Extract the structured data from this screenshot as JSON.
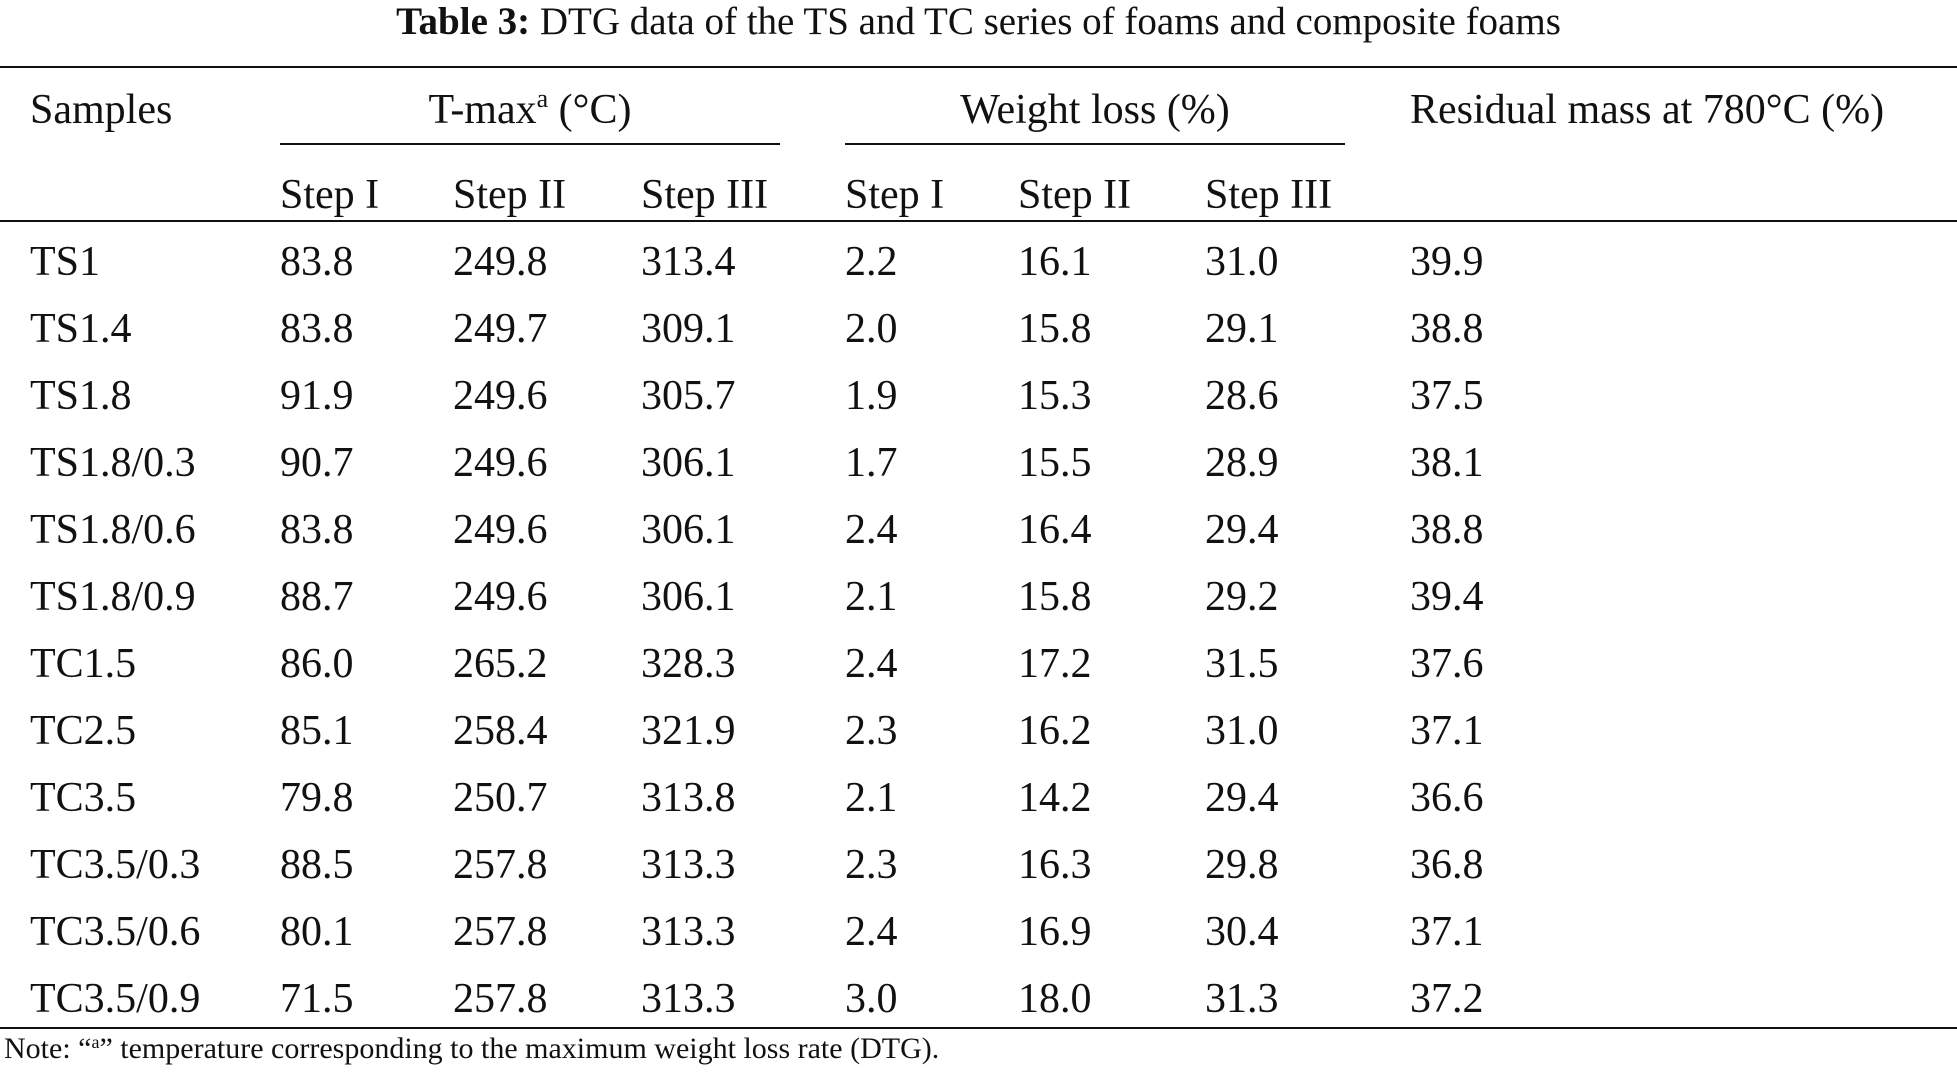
{
  "table": {
    "caption_label": "Table 3:",
    "caption_text": "DTG data of the TS and TC series of foams and composite foams",
    "header": {
      "samples": "Samples",
      "tmax_main": "T-max",
      "tmax_sup": "a",
      "tmax_unit": " (°C)",
      "weight_loss": "Weight loss (%)",
      "residual": "Residual mass at 780°C (%)",
      "step1": "Step I",
      "step2": "Step II",
      "step3": "Step III"
    },
    "rows": [
      [
        "TS1",
        "83.8",
        "249.8",
        "313.4",
        "2.2",
        "16.1",
        "31.0",
        "39.9"
      ],
      [
        "TS1.4",
        "83.8",
        "249.7",
        "309.1",
        "2.0",
        "15.8",
        "29.1",
        "38.8"
      ],
      [
        "TS1.8",
        "91.9",
        "249.6",
        "305.7",
        "1.9",
        "15.3",
        "28.6",
        "37.5"
      ],
      [
        "TS1.8/0.3",
        "90.7",
        "249.6",
        "306.1",
        "1.7",
        "15.5",
        "28.9",
        "38.1"
      ],
      [
        "TS1.8/0.6",
        "83.8",
        "249.6",
        "306.1",
        "2.4",
        "16.4",
        "29.4",
        "38.8"
      ],
      [
        "TS1.8/0.9",
        "88.7",
        "249.6",
        "306.1",
        "2.1",
        "15.8",
        "29.2",
        "39.4"
      ],
      [
        "TC1.5",
        "86.0",
        "265.2",
        "328.3",
        "2.4",
        "17.2",
        "31.5",
        "37.6"
      ],
      [
        "TC2.5",
        "85.1",
        "258.4",
        "321.9",
        "2.3",
        "16.2",
        "31.0",
        "37.1"
      ],
      [
        "TC3.5",
        "79.8",
        "250.7",
        "313.8",
        "2.1",
        "14.2",
        "29.4",
        "36.6"
      ],
      [
        "TC3.5/0.3",
        "88.5",
        "257.8",
        "313.3",
        "2.3",
        "16.3",
        "29.8",
        "36.8"
      ],
      [
        "TC3.5/0.6",
        "80.1",
        "257.8",
        "313.3",
        "2.4",
        "16.9",
        "30.4",
        "37.1"
      ],
      [
        "TC3.5/0.9",
        "71.5",
        "257.8",
        "313.3",
        "3.0",
        "18.0",
        "31.3",
        "37.2"
      ]
    ],
    "note_prefix": "Note: “",
    "note_sup": "a",
    "note_suffix": "” temperature corresponding to the maximum weight loss rate (DTG)."
  }
}
